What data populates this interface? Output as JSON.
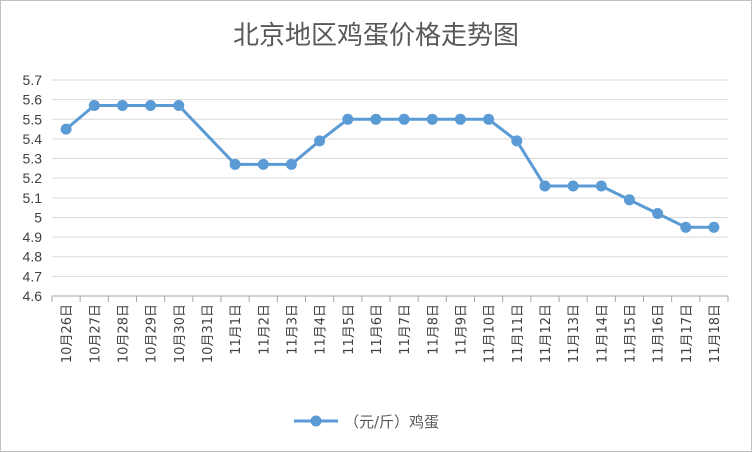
{
  "chart_data": {
    "type": "line",
    "title": "北京地区鸡蛋价格走势图",
    "xlabel": "",
    "ylabel": "",
    "categories": [
      "10月26日",
      "10月27日",
      "10月28日",
      "10月29日",
      "10月30日",
      "10月31日",
      "11月1日",
      "11月2日",
      "11月3日",
      "11月4日",
      "11月5日",
      "11月6日",
      "11月7日",
      "11月8日",
      "11月9日",
      "11月10日",
      "11月11日",
      "11月12日",
      "11月13日",
      "11月14日",
      "11月15日",
      "11月16日",
      "11月17日",
      "11月18日"
    ],
    "series": [
      {
        "name": "（元/斤）鸡蛋",
        "color": "#5b9bd5",
        "values": [
          5.45,
          5.57,
          5.57,
          5.57,
          5.57,
          null,
          5.27,
          5.27,
          5.27,
          5.39,
          5.5,
          5.5,
          5.5,
          5.5,
          5.5,
          5.5,
          5.39,
          5.16,
          5.16,
          5.16,
          5.09,
          5.02,
          4.95,
          4.95
        ]
      }
    ],
    "ylim": [
      4.6,
      5.7
    ],
    "yticks": [
      "4.6",
      "4.7",
      "4.8",
      "4.9",
      "5",
      "5.1",
      "5.2",
      "5.3",
      "5.4",
      "5.5",
      "5.6",
      "5.7"
    ],
    "grid": true,
    "legend": "bottom"
  }
}
